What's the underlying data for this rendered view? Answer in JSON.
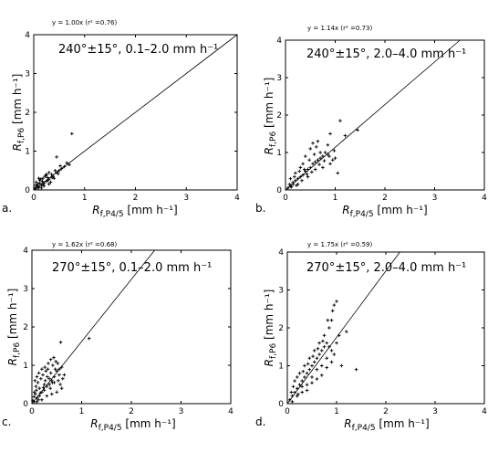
{
  "chart_data": [
    {
      "type": "scatter",
      "panel_label": "a.",
      "fit_text": "y = 1.00x (r² =0.76)",
      "fit_slope": 1.0,
      "annotation": "240°±15°, 0.1–2.0 mm h⁻¹",
      "xlabel": {
        "main": "R",
        "sub": "f,P4/5",
        "unit": " [mm h⁻¹]"
      },
      "ylabel": {
        "main": "R",
        "sub": "f,P6",
        "unit": " [mm h⁻¹]"
      },
      "xlim": [
        0,
        4
      ],
      "ylim": [
        0,
        4
      ],
      "xticks": [
        "0",
        "1",
        "2",
        "3",
        "4"
      ],
      "yticks": [
        "0",
        "1",
        "2",
        "3",
        "4"
      ],
      "points": [
        [
          0.05,
          0.05
        ],
        [
          0.1,
          0.08
        ],
        [
          0.15,
          0.12
        ],
        [
          0.2,
          0.18
        ],
        [
          0.25,
          0.22
        ],
        [
          0.08,
          0.15
        ],
        [
          0.12,
          0.25
        ],
        [
          0.18,
          0.3
        ],
        [
          0.22,
          0.35
        ],
        [
          0.3,
          0.28
        ],
        [
          0.35,
          0.4
        ],
        [
          0.4,
          0.3
        ],
        [
          0.45,
          0.45
        ],
        [
          0.5,
          0.5
        ],
        [
          0.1,
          0.3
        ],
        [
          0.05,
          0.2
        ],
        [
          0.2,
          0.1
        ],
        [
          0.3,
          0.15
        ],
        [
          0.15,
          0.05
        ],
        [
          0.25,
          0.4
        ],
        [
          0.28,
          0.25
        ],
        [
          0.33,
          0.2
        ],
        [
          0.38,
          0.35
        ],
        [
          0.55,
          0.55
        ],
        [
          0.6,
          0.6
        ],
        [
          0.65,
          0.7
        ],
        [
          0.7,
          0.65
        ],
        [
          0.75,
          1.45
        ],
        [
          0.45,
          0.85
        ],
        [
          0.3,
          0.45
        ],
        [
          0.12,
          0.18
        ],
        [
          0.07,
          0.1
        ],
        [
          0.17,
          0.22
        ],
        [
          0.27,
          0.32
        ],
        [
          0.42,
          0.5
        ],
        [
          0.02,
          0.04
        ],
        [
          0.04,
          0.12
        ],
        [
          0.09,
          0.05
        ],
        [
          0.14,
          0.28
        ],
        [
          0.19,
          0.14
        ],
        [
          0.24,
          0.38
        ],
        [
          0.36,
          0.32
        ],
        [
          0.48,
          0.42
        ],
        [
          0.52,
          0.62
        ]
      ]
    },
    {
      "type": "scatter",
      "panel_label": "b.",
      "fit_text": "y = 1.14x (r² =0.73)",
      "fit_slope": 1.14,
      "annotation": "240°±15°, 2.0–4.0 mm h⁻¹",
      "xlabel": {
        "main": "R",
        "sub": "f,P4/5",
        "unit": " [mm h⁻¹]"
      },
      "ylabel": {
        "main": "R",
        "sub": "f,P6",
        "unit": " [mm h⁻¹]"
      },
      "xlim": [
        0,
        4
      ],
      "ylim": [
        0,
        4
      ],
      "xticks": [
        "0",
        "1",
        "2",
        "3",
        "4"
      ],
      "yticks": [
        "0",
        "1",
        "2",
        "3",
        "4"
      ],
      "points": [
        [
          0.05,
          0.05
        ],
        [
          0.1,
          0.1
        ],
        [
          0.15,
          0.15
        ],
        [
          0.2,
          0.25
        ],
        [
          0.25,
          0.3
        ],
        [
          0.3,
          0.35
        ],
        [
          0.35,
          0.4
        ],
        [
          0.4,
          0.5
        ],
        [
          0.45,
          0.55
        ],
        [
          0.5,
          0.6
        ],
        [
          0.55,
          0.7
        ],
        [
          0.6,
          0.75
        ],
        [
          0.65,
          0.8
        ],
        [
          0.7,
          0.85
        ],
        [
          0.75,
          0.9
        ],
        [
          0.8,
          1.0
        ],
        [
          0.85,
          0.95
        ],
        [
          0.9,
          0.7
        ],
        [
          0.95,
          0.8
        ],
        [
          1.0,
          0.85
        ],
        [
          1.05,
          0.45
        ],
        [
          1.1,
          1.85
        ],
        [
          1.2,
          1.45
        ],
        [
          1.45,
          1.6
        ],
        [
          0.9,
          1.5
        ],
        [
          0.5,
          1.1
        ],
        [
          0.55,
          1.25
        ],
        [
          0.62,
          1.15
        ],
        [
          0.7,
          1.0
        ],
        [
          0.4,
          0.9
        ],
        [
          0.35,
          0.7
        ],
        [
          0.3,
          0.6
        ],
        [
          0.2,
          0.45
        ],
        [
          0.1,
          0.3
        ],
        [
          0.15,
          0.2
        ],
        [
          0.25,
          0.15
        ],
        [
          0.45,
          0.35
        ],
        [
          0.6,
          0.55
        ],
        [
          0.75,
          0.6
        ],
        [
          0.85,
          1.2
        ],
        [
          0.65,
          1.3
        ],
        [
          0.58,
          0.95
        ],
        [
          0.48,
          0.8
        ],
        [
          0.38,
          0.55
        ],
        [
          0.28,
          0.5
        ],
        [
          0.18,
          0.35
        ],
        [
          0.08,
          0.15
        ],
        [
          0.12,
          0.08
        ],
        [
          0.22,
          0.12
        ],
        [
          0.33,
          0.25
        ],
        [
          0.43,
          0.42
        ],
        [
          0.53,
          0.48
        ],
        [
          0.68,
          0.68
        ],
        [
          0.78,
          0.78
        ],
        [
          0.88,
          0.9
        ],
        [
          0.98,
          1.05
        ]
      ]
    },
    {
      "type": "scatter",
      "panel_label": "c.",
      "fit_text": "y = 1.62x (r² =0.68)",
      "fit_slope": 1.62,
      "annotation": "270°±15°, 0.1–2.0 mm h⁻¹",
      "xlabel": {
        "main": "R",
        "sub": "f,P4/5",
        "unit": " [mm h⁻¹]"
      },
      "ylabel": {
        "main": "R",
        "sub": "f,P6",
        "unit": " [mm h⁻¹]"
      },
      "xlim": [
        0,
        4
      ],
      "ylim": [
        0,
        4
      ],
      "xticks": [
        "0",
        "1",
        "2",
        "3",
        "4"
      ],
      "yticks": [
        "0",
        "1",
        "2",
        "3",
        "4"
      ],
      "points": [
        [
          0.05,
          0.05
        ],
        [
          0.1,
          0.15
        ],
        [
          0.15,
          0.2
        ],
        [
          0.2,
          0.3
        ],
        [
          0.25,
          0.35
        ],
        [
          0.3,
          0.45
        ],
        [
          0.35,
          0.5
        ],
        [
          0.4,
          0.6
        ],
        [
          0.45,
          0.7
        ],
        [
          0.5,
          0.85
        ],
        [
          0.55,
          0.9
        ],
        [
          0.6,
          0.95
        ],
        [
          0.05,
          0.3
        ],
        [
          0.08,
          0.45
        ],
        [
          0.12,
          0.55
        ],
        [
          0.18,
          0.65
        ],
        [
          0.22,
          0.75
        ],
        [
          0.28,
          0.85
        ],
        [
          0.32,
          0.9
        ],
        [
          0.38,
          0.8
        ],
        [
          0.42,
          1.0
        ],
        [
          0.48,
          1.1
        ],
        [
          0.52,
          1.05
        ],
        [
          0.58,
          1.6
        ],
        [
          1.15,
          1.7
        ],
        [
          0.65,
          0.75
        ],
        [
          0.3,
          0.2
        ],
        [
          0.2,
          0.1
        ],
        [
          0.1,
          0.05
        ],
        [
          0.15,
          0.4
        ],
        [
          0.25,
          0.5
        ],
        [
          0.35,
          0.65
        ],
        [
          0.45,
          0.55
        ],
        [
          0.55,
          0.75
        ],
        [
          0.6,
          0.4
        ],
        [
          0.5,
          0.3
        ],
        [
          0.4,
          0.25
        ],
        [
          0.06,
          0.6
        ],
        [
          0.1,
          0.7
        ],
        [
          0.14,
          0.8
        ],
        [
          0.2,
          0.9
        ],
        [
          0.26,
          0.95
        ],
        [
          0.33,
          1.05
        ],
        [
          0.38,
          1.15
        ],
        [
          0.44,
          1.2
        ],
        [
          0.02,
          0.08
        ],
        [
          0.04,
          0.18
        ],
        [
          0.07,
          0.25
        ],
        [
          0.09,
          0.35
        ],
        [
          0.13,
          0.1
        ],
        [
          0.17,
          0.28
        ],
        [
          0.23,
          0.42
        ],
        [
          0.27,
          0.6
        ],
        [
          0.31,
          0.7
        ],
        [
          0.37,
          0.4
        ],
        [
          0.41,
          0.55
        ],
        [
          0.47,
          0.9
        ],
        [
          0.53,
          0.6
        ],
        [
          0.57,
          0.5
        ],
        [
          0.62,
          0.65
        ]
      ]
    },
    {
      "type": "scatter",
      "panel_label": "d.",
      "fit_text": "y = 1.75x (r² =0.59)",
      "fit_slope": 1.75,
      "annotation": "270°±15°, 2.0–4.0 mm h⁻¹",
      "xlabel": {
        "main": "R",
        "sub": "f,P4/5",
        "unit": " [mm h⁻¹]"
      },
      "ylabel": {
        "main": "R",
        "sub": "f,P6",
        "unit": " [mm h⁻¹]"
      },
      "xlim": [
        0,
        4
      ],
      "ylim": [
        0,
        4
      ],
      "xticks": [
        "0",
        "1",
        "2",
        "3",
        "4"
      ],
      "yticks": [
        "0",
        "1",
        "2",
        "3",
        "4"
      ],
      "points": [
        [
          0.05,
          0.1
        ],
        [
          0.1,
          0.2
        ],
        [
          0.15,
          0.3
        ],
        [
          0.2,
          0.4
        ],
        [
          0.25,
          0.5
        ],
        [
          0.3,
          0.6
        ],
        [
          0.35,
          0.7
        ],
        [
          0.4,
          0.8
        ],
        [
          0.45,
          0.9
        ],
        [
          0.5,
          1.0
        ],
        [
          0.55,
          1.1
        ],
        [
          0.6,
          1.2
        ],
        [
          0.65,
          1.3
        ],
        [
          0.7,
          1.4
        ],
        [
          0.75,
          1.5
        ],
        [
          0.8,
          1.6
        ],
        [
          0.85,
          2.0
        ],
        [
          0.9,
          2.2
        ],
        [
          0.95,
          2.6
        ],
        [
          1.0,
          2.7
        ],
        [
          1.05,
          1.8
        ],
        [
          1.1,
          1.0
        ],
        [
          1.4,
          0.9
        ],
        [
          1.2,
          1.9
        ],
        [
          0.9,
          1.4
        ],
        [
          0.8,
          1.2
        ],
        [
          0.7,
          1.0
        ],
        [
          0.6,
          0.9
        ],
        [
          0.5,
          0.7
        ],
        [
          0.4,
          0.5
        ],
        [
          0.3,
          0.3
        ],
        [
          0.2,
          0.2
        ],
        [
          0.1,
          0.05
        ],
        [
          0.15,
          0.6
        ],
        [
          0.25,
          0.8
        ],
        [
          0.35,
          1.0
        ],
        [
          0.45,
          1.2
        ],
        [
          0.55,
          1.4
        ],
        [
          0.65,
          1.6
        ],
        [
          0.75,
          1.8
        ],
        [
          0.3,
          0.45
        ],
        [
          0.4,
          0.35
        ],
        [
          0.5,
          0.55
        ],
        [
          0.6,
          0.65
        ],
        [
          0.7,
          0.75
        ],
        [
          0.8,
          0.95
        ],
        [
          0.9,
          1.1
        ],
        [
          0.85,
          1.5
        ],
        [
          0.95,
          1.3
        ],
        [
          1.0,
          1.6
        ],
        [
          0.2,
          0.7
        ],
        [
          0.12,
          0.45
        ],
        [
          0.08,
          0.3
        ],
        [
          0.22,
          0.25
        ],
        [
          0.32,
          0.85
        ],
        [
          0.42,
          1.05
        ],
        [
          0.52,
          1.25
        ],
        [
          0.62,
          1.45
        ],
        [
          0.72,
          1.65
        ],
        [
          0.82,
          2.2
        ],
        [
          0.92,
          2.45
        ]
      ]
    }
  ]
}
